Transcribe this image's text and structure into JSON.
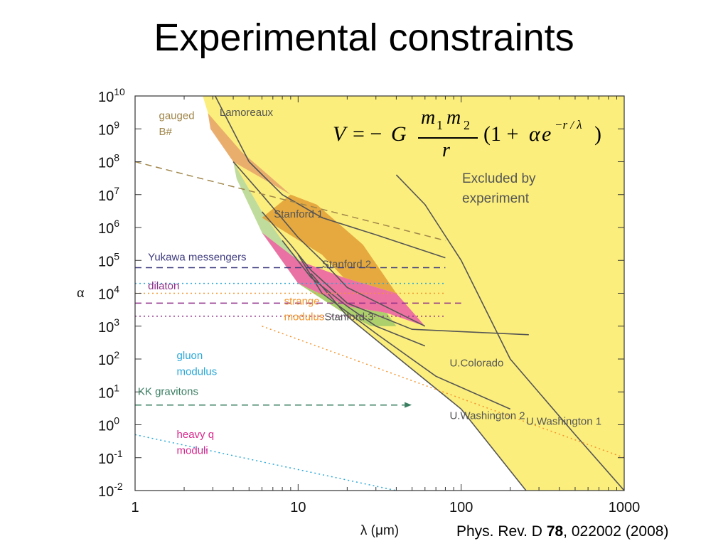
{
  "slide": {
    "title": "Experimental constraints",
    "citation": {
      "journal": "Phys. Rev. D ",
      "volume": "78",
      "rest": ", 022002 (2008)"
    }
  },
  "formula": {
    "V": "V",
    "eq": "= −",
    "G": "G",
    "m1": "m",
    "sub1": "1",
    "m2": "m",
    "sub2": "2",
    "r": "r",
    "paren": "(1 +",
    "alpha": "α",
    "e": "e",
    "exponent": "−r / λ",
    "close": ")"
  },
  "chart_data": {
    "type": "area",
    "title": "",
    "xlabel": "λ (μm)",
    "ylabel": "α",
    "x_scale": "log",
    "y_scale": "log",
    "xlim": [
      1,
      1000
    ],
    "ylim": [
      0.01,
      10000000000
    ],
    "x_ticks": [
      {
        "value": 1,
        "label": "1"
      },
      {
        "value": 10,
        "label": "10"
      },
      {
        "value": 100,
        "label": "100"
      },
      {
        "value": 1000,
        "label": "1000"
      }
    ],
    "y_ticks": [
      {
        "exp": -2
      },
      {
        "exp": -1
      },
      {
        "exp": 0
      },
      {
        "exp": 1
      },
      {
        "exp": 2
      },
      {
        "exp": 3
      },
      {
        "exp": 4
      },
      {
        "exp": 5
      },
      {
        "exp": 6
      },
      {
        "exp": 7
      },
      {
        "exp": 8
      },
      {
        "exp": 9
      },
      {
        "exp": 10
      }
    ],
    "y_tick_base": "10",
    "grid": false,
    "colors": {
      "excluded_yellow": "#fbee7c",
      "lamoreaux_orange": "#e8aa6c",
      "stanford1_orange": "#e5a43c",
      "stanford2_pink": "#ec6aa4",
      "stanford3_green": "#a9cc6c",
      "green_light": "#bfdc9c",
      "limit_line": "#555555",
      "gauged": "#a0864a",
      "yukawa": "#3d3a7e",
      "dilaton": "#8e2e88",
      "strange": "#f2962e",
      "gluon": "#2aa8d8",
      "kk": "#3a7e62",
      "heavy_q": "#d8268c"
    },
    "excluded_label": "Excluded by experiment",
    "regions": [
      {
        "name": "Lamoreaux",
        "color": "lamoreaux_orange",
        "points": [
          [
            2.8,
            3000000000
          ],
          [
            4.5,
            200000000
          ],
          [
            7,
            30000000
          ],
          [
            9,
            10000000
          ],
          [
            4,
            100000000
          ],
          [
            2.9,
            1000000000
          ]
        ]
      },
      {
        "name": "Stanford 1",
        "color": "stanford1_orange",
        "points": [
          [
            9,
            10000000
          ],
          [
            13,
            5000000
          ],
          [
            25,
            300000
          ],
          [
            40,
            10000
          ],
          [
            19,
            30000
          ],
          [
            14,
            150000
          ],
          [
            6,
            2000000
          ]
        ]
      },
      {
        "name": "Stanford 2",
        "color": "stanford2_pink",
        "points": [
          [
            6,
            700000
          ],
          [
            10,
            100000
          ],
          [
            19,
            30000
          ],
          [
            40,
            10000
          ],
          [
            60,
            1000
          ],
          [
            35,
            2500
          ],
          [
            20,
            4000
          ],
          [
            10,
            20000
          ]
        ]
      },
      {
        "name": "Stanford 3",
        "color": "stanford3_green",
        "points": [
          [
            10,
            20000
          ],
          [
            20,
            4000
          ],
          [
            35,
            2500
          ],
          [
            40,
            1000
          ],
          [
            28,
            1000
          ],
          [
            18,
            3000
          ]
        ]
      }
    ],
    "limit_curves": [
      {
        "name": "Lamoreaux",
        "points": [
          [
            3.1,
            10000000000
          ],
          [
            5,
            100000000
          ],
          [
            8,
            10000000
          ],
          [
            14,
            2000000
          ],
          [
            30,
            600000
          ],
          [
            80,
            120000
          ]
        ]
      },
      {
        "name": "Stanford 1",
        "points": [
          [
            4,
            100000000
          ],
          [
            6,
            10000000
          ],
          [
            10,
            500000
          ],
          [
            14,
            100000
          ],
          [
            20,
            15000
          ],
          [
            60,
            1000
          ]
        ]
      },
      {
        "name": "Stanford 2",
        "points": [
          [
            6,
            3000000
          ],
          [
            9,
            300000
          ],
          [
            12,
            50000
          ],
          [
            20,
            5000
          ],
          [
            50,
            800
          ],
          [
            260,
            550
          ]
        ]
      },
      {
        "name": "Stanford 3",
        "points": [
          [
            8,
            400000
          ],
          [
            12,
            30000
          ],
          [
            20,
            4000
          ],
          [
            30,
            1000
          ],
          [
            60,
            250
          ]
        ]
      },
      {
        "name": "U.Colorado",
        "points": [
          [
            10,
            150000
          ],
          [
            14,
            10000
          ],
          [
            30,
            600
          ],
          [
            70,
            30
          ],
          [
            200,
            3
          ]
        ]
      },
      {
        "name": "U.Washington 2",
        "points": [
          [
            12,
            40000
          ],
          [
            20,
            2000
          ],
          [
            40,
            120
          ],
          [
            100,
            3
          ],
          [
            250,
            0.01
          ]
        ]
      },
      {
        "name": "U.Washington 1",
        "points": [
          [
            40,
            40000000
          ],
          [
            60,
            5000000
          ],
          [
            100,
            100000
          ],
          [
            200,
            100
          ],
          [
            500,
            0.5
          ],
          [
            1000,
            0.01
          ]
        ]
      }
    ],
    "predictions": [
      {
        "name": "gauged B#",
        "style": "dashed",
        "color": "gauged",
        "points": [
          [
            1,
            100000000
          ],
          [
            80,
            400000
          ]
        ]
      },
      {
        "name": "Yukawa messengers",
        "style": "dashed",
        "color": "yukawa",
        "points": [
          [
            1,
            60000
          ],
          [
            80,
            60000
          ]
        ]
      },
      {
        "name": "Yukawa messengers",
        "style": "dotted",
        "color": "gluon",
        "points": [
          [
            1,
            20000
          ],
          [
            80,
            20000
          ]
        ]
      },
      {
        "name": "dilaton",
        "style": "dotted",
        "color": "strange",
        "points": [
          [
            1,
            10000
          ],
          [
            80,
            10000
          ]
        ]
      },
      {
        "name": "dilaton",
        "style": "dashed",
        "color": "dilaton",
        "points": [
          [
            1,
            5000
          ],
          [
            100,
            5000
          ]
        ]
      },
      {
        "name": "dilaton",
        "style": "dotted",
        "color": "dilaton",
        "points": [
          [
            1,
            2000
          ],
          [
            80,
            2000
          ]
        ]
      },
      {
        "name": "strange modulus",
        "style": "dotted",
        "color": "strange",
        "points": [
          [
            6,
            1000
          ],
          [
            1000,
            0.1
          ]
        ]
      },
      {
        "name": "gluon modulus",
        "style": "dotted",
        "color": "gluon",
        "points": [
          [
            1,
            0.5
          ],
          [
            40,
            0.01
          ]
        ]
      },
      {
        "name": "KK gravitons",
        "style": "dashed-arrow",
        "color": "kk",
        "points": [
          [
            1,
            4
          ],
          [
            45,
            4
          ]
        ]
      }
    ],
    "annotations": [
      {
        "text": "Lamoreaux",
        "x": 3.3,
        "y": 2500000000,
        "color": "limit_line"
      },
      {
        "text": "Stanford 1",
        "x": 7.1,
        "y": 2000000,
        "color": "limit_line"
      },
      {
        "text": "Stanford 2",
        "x": 14,
        "y": 60000,
        "color": "limit_line"
      },
      {
        "text": "Stanford 3",
        "x": 14.5,
        "y": 1500,
        "color": "limit_line"
      },
      {
        "text": "U.Colorado",
        "x": 85,
        "y": 60,
        "color": "limit_line"
      },
      {
        "text": "U.Washington 2",
        "x": 85,
        "y": 1.5,
        "color": "limit_line"
      },
      {
        "text": "U.Washington 1",
        "x": 250,
        "y": 1,
        "color": "limit_line"
      },
      {
        "text": "gauged",
        "x": 1.4,
        "y": 2000000000,
        "color": "gauged"
      },
      {
        "text": "B#",
        "x": 1.4,
        "y": 650000000,
        "color": "gauged"
      },
      {
        "text": "Yukawa messengers",
        "x": 1.2,
        "y": 100000,
        "color": "yukawa"
      },
      {
        "text": "dilaton",
        "x": 1.2,
        "y": 13000,
        "color": "dilaton"
      },
      {
        "text": "strange",
        "x": 8.2,
        "y": 4500,
        "color": "strange"
      },
      {
        "text": "modulus",
        "x": 8.2,
        "y": 1500,
        "color": "strange"
      },
      {
        "text": "gluon",
        "x": 1.8,
        "y": 100,
        "color": "gluon"
      },
      {
        "text": "modulus",
        "x": 1.8,
        "y": 33,
        "color": "gluon"
      },
      {
        "text": "KK gravitons",
        "x": 1.04,
        "y": 8,
        "color": "kk"
      },
      {
        "text": "heavy q",
        "x": 1.8,
        "y": 0.4,
        "color": "heavy_q"
      },
      {
        "text": "moduli",
        "x": 1.8,
        "y": 0.13,
        "color": "heavy_q"
      }
    ]
  }
}
